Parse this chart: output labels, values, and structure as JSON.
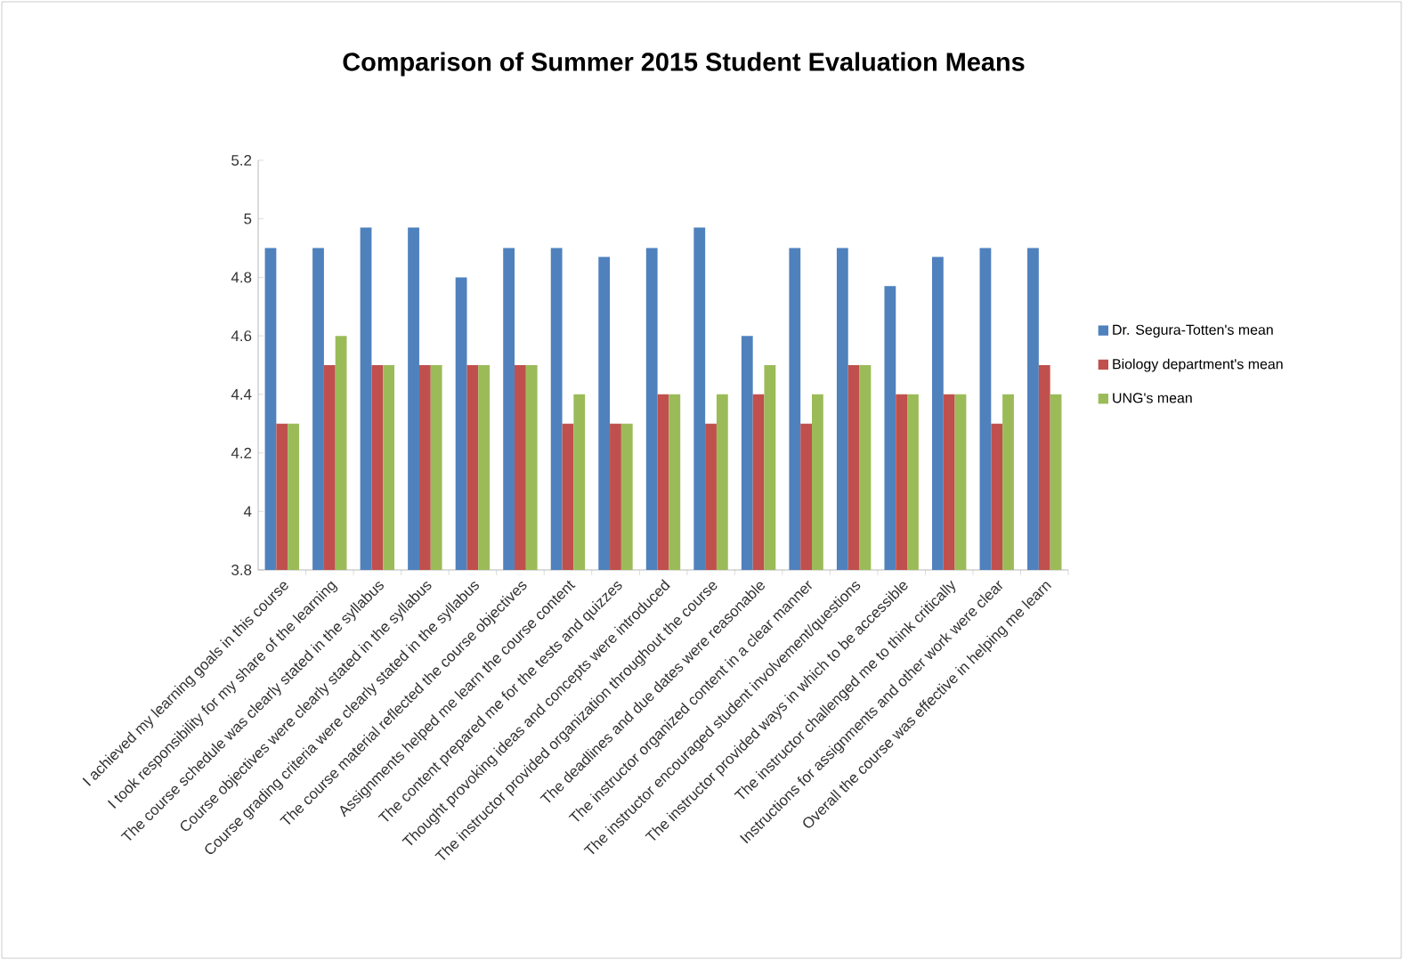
{
  "chart_data": {
    "type": "bar",
    "title": "Comparison of Summer 2015 Student Evaluation Means",
    "categories": [
      "I achieved my learning goals in this course",
      "I took responsibility for my share of the learning",
      "The course schedule was clearly stated in the syllabus",
      "Course objectives were clearly stated in the syllabus",
      "Course grading criteria were clearly stated in the syllabus",
      "The course material reflected the course objectives",
      "Assignments helped me learn the course content",
      "The content prepared me for the tests and quizzes",
      "Thought provoking ideas and concepts were introduced",
      "The instructor provided organization throughout the course",
      "The deadlines and due dates were reasonable",
      "The instructor organized content in a clear manner",
      "The instructor encouraged student involvement/questions",
      "The instructor provided ways in which to be accessible",
      "The instructor challenged me to think critically",
      "Instructions for assignments and other work were clear",
      "Overall the course was effective in helping me learn"
    ],
    "series": [
      {
        "name": "Dr. Segura-Totten's mean",
        "color": "#4f81bd",
        "values": [
          4.9,
          4.9,
          4.97,
          4.97,
          4.8,
          4.9,
          4.9,
          4.87,
          4.9,
          4.97,
          4.6,
          4.9,
          4.9,
          4.77,
          4.87,
          4.9,
          4.9
        ]
      },
      {
        "name": "Biology department's mean",
        "color": "#c0504d",
        "values": [
          4.3,
          4.5,
          4.5,
          4.5,
          4.5,
          4.5,
          4.3,
          4.3,
          4.4,
          4.3,
          4.4,
          4.3,
          4.5,
          4.4,
          4.4,
          4.3,
          4.5
        ]
      },
      {
        "name": "UNG's mean",
        "color": "#9bbb59",
        "values": [
          4.3,
          4.6,
          4.5,
          4.5,
          4.5,
          4.5,
          4.4,
          4.3,
          4.4,
          4.4,
          4.5,
          4.4,
          4.5,
          4.4,
          4.4,
          4.4,
          4.4
        ]
      }
    ],
    "ylim": [
      3.8,
      5.2
    ],
    "yticks": [
      3.8,
      4,
      4.2,
      4.4,
      4.6,
      4.8,
      5,
      5.2
    ],
    "legend": "right"
  }
}
